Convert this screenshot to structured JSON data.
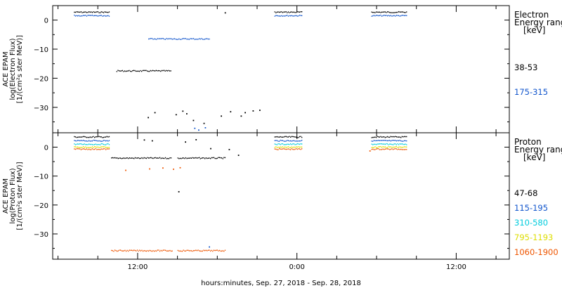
{
  "chart_data": [
    {
      "type": "scatter",
      "ylabel": [
        "ACE EPAM",
        "log(Electron Flux)",
        "[1/(cm²s ster MeV)]"
      ],
      "ylim": [
        -38.5,
        4
      ],
      "yticks": [
        0,
        -10,
        -20,
        -30
      ],
      "legend": {
        "header": [
          "Electron",
          "Energy ranges",
          "[keV]"
        ],
        "entries": [
          {
            "label": "38-53",
            "color": "#000000"
          },
          {
            "label": "175-315",
            "color": "#1155cc"
          }
        ]
      },
      "series": [
        {
          "color": "#000000",
          "segments": [
            {
              "x0": 7.2,
              "x1": 9.9,
              "y": 2.7
            },
            {
              "x0": 22.3,
              "x1": 24.4,
              "y": 2.7
            },
            {
              "x0": 29.6,
              "x1": 32.3,
              "y": 2.7
            },
            {
              "x0": 10.4,
              "x1": 14.5,
              "y": -17.5
            }
          ],
          "points": [
            [
              18.6,
              2.5
            ],
            [
              12.8,
              -33.5
            ],
            [
              13.3,
              -31.8
            ],
            [
              14.9,
              -32.5
            ],
            [
              15.7,
              -32.2
            ],
            [
              16.2,
              -34.5
            ],
            [
              17.0,
              -35.5
            ],
            [
              18.3,
              -33.0
            ],
            [
              19.0,
              -31.5
            ],
            [
              20.1,
              -31.8
            ],
            [
              20.7,
              -31.2
            ],
            [
              21.2,
              -31.0
            ],
            [
              19.8,
              -33.0
            ],
            [
              15.4,
              -31.3
            ]
          ]
        },
        {
          "color": "#1155cc",
          "segments": [
            {
              "x0": 7.2,
              "x1": 9.9,
              "y": 1.5
            },
            {
              "x0": 22.3,
              "x1": 24.4,
              "y": 1.5
            },
            {
              "x0": 29.6,
              "x1": 32.3,
              "y": 1.5
            },
            {
              "x0": 12.8,
              "x1": 17.4,
              "y": -6.5
            }
          ],
          "points": [
            [
              16.3,
              -37.2
            ],
            [
              16.6,
              -37.8
            ],
            [
              17.1,
              -37.0
            ]
          ]
        }
      ]
    },
    {
      "type": "scatter",
      "ylabel": [
        "ACE EPAM",
        "log(Proton Flux)",
        "[1/(cm²s ster MeV)]"
      ],
      "ylim": [
        -38.5,
        4
      ],
      "yticks": [
        0,
        -10,
        -20,
        -30
      ],
      "legend": {
        "header": [
          "Proton",
          "Energy ranges",
          "[keV]"
        ],
        "entries": [
          {
            "label": "47-68",
            "color": "#000000"
          },
          {
            "label": "115-195",
            "color": "#1155cc"
          },
          {
            "label": "310-580",
            "color": "#00ccdd"
          },
          {
            "label": "795-1193",
            "color": "#dddd00"
          },
          {
            "label": "1060-1900",
            "color": "#ee5500"
          }
        ]
      },
      "series": [
        {
          "color": "#000000",
          "segments": [
            {
              "x0": 7.2,
              "x1": 9.9,
              "y": 3.5
            },
            {
              "x0": 22.3,
              "x1": 24.4,
              "y": 3.5
            },
            {
              "x0": 29.6,
              "x1": 32.3,
              "y": 3.5
            },
            {
              "x0": 10.0,
              "x1": 14.5,
              "y": -3.8
            },
            {
              "x0": 15.0,
              "x1": 18.6,
              "y": -3.8
            }
          ],
          "points": [
            [
              12.5,
              2.5
            ],
            [
              13.1,
              2.2
            ],
            [
              15.6,
              1.8
            ],
            [
              16.4,
              2.6
            ],
            [
              17.5,
              -0.5
            ],
            [
              15.1,
              -15.4
            ],
            [
              18.9,
              -0.8
            ],
            [
              19.6,
              -2.8
            ]
          ]
        },
        {
          "color": "#1155cc",
          "segments": [
            {
              "x0": 7.2,
              "x1": 9.9,
              "y": 2.2
            },
            {
              "x0": 22.3,
              "x1": 24.4,
              "y": 2.2
            },
            {
              "x0": 29.6,
              "x1": 32.3,
              "y": 2.2
            }
          ],
          "points": [
            [
              17.4,
              -34.5
            ]
          ]
        },
        {
          "color": "#00ccdd",
          "segments": [
            {
              "x0": 7.2,
              "x1": 9.9,
              "y": 1.0
            },
            {
              "x0": 22.3,
              "x1": 24.4,
              "y": 1.0
            },
            {
              "x0": 29.6,
              "x1": 32.3,
              "y": 1.0
            }
          ],
          "points": []
        },
        {
          "color": "#dddd00",
          "segments": [
            {
              "x0": 7.2,
              "x1": 9.9,
              "y": 0.0
            },
            {
              "x0": 22.3,
              "x1": 24.4,
              "y": 0.0
            },
            {
              "x0": 29.6,
              "x1": 32.3,
              "y": 0.0
            }
          ],
          "points": []
        },
        {
          "color": "#ee5500",
          "segments": [
            {
              "x0": 7.2,
              "x1": 9.9,
              "y": -0.7
            },
            {
              "x0": 22.3,
              "x1": 24.4,
              "y": -0.7
            },
            {
              "x0": 29.6,
              "x1": 32.3,
              "y": -0.7
            },
            {
              "x0": 10.0,
              "x1": 14.6,
              "y": -35.8
            },
            {
              "x0": 15.0,
              "x1": 18.6,
              "y": -35.8
            }
          ],
          "points": [
            [
              11.1,
              -8.0
            ],
            [
              12.9,
              -7.5
            ],
            [
              13.9,
              -7.2
            ],
            [
              14.7,
              -7.6
            ],
            [
              15.2,
              -7.1
            ],
            [
              29.5,
              -1.3
            ]
          ]
        }
      ]
    }
  ],
  "x_axis": {
    "xlim": [
      5.6,
      40.0
    ],
    "major_ticks": [
      {
        "x": 12,
        "label": "12:00"
      },
      {
        "x": 24,
        "label": "0:00"
      },
      {
        "x": 36,
        "label": "12:00"
      }
    ],
    "minor_ticks": [
      6,
      9,
      15,
      18,
      21,
      27,
      30,
      33,
      39
    ],
    "label": "hours:minutes, Sep. 27, 2018 - Sep. 28, 2018"
  }
}
